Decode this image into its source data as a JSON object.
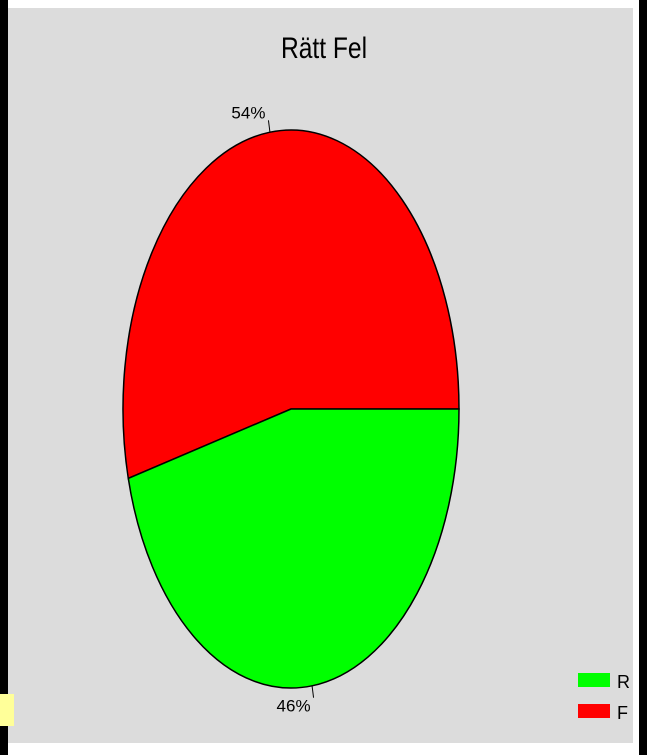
{
  "chart_data": {
    "type": "pie",
    "title": "Rätt Fel",
    "slices": [
      {
        "label": "F",
        "value": 54,
        "label_text": "54%",
        "color": "#ff0000"
      },
      {
        "label": "R",
        "value": 46,
        "label_text": "46%",
        "color": "#00ff00"
      }
    ],
    "legend": {
      "placement": "bottom-right",
      "entries": [
        {
          "label": "R",
          "color": "#00ff00"
        },
        {
          "label": "F",
          "color": "#ff0000"
        }
      ]
    },
    "background_color": "#dcdcdc"
  }
}
